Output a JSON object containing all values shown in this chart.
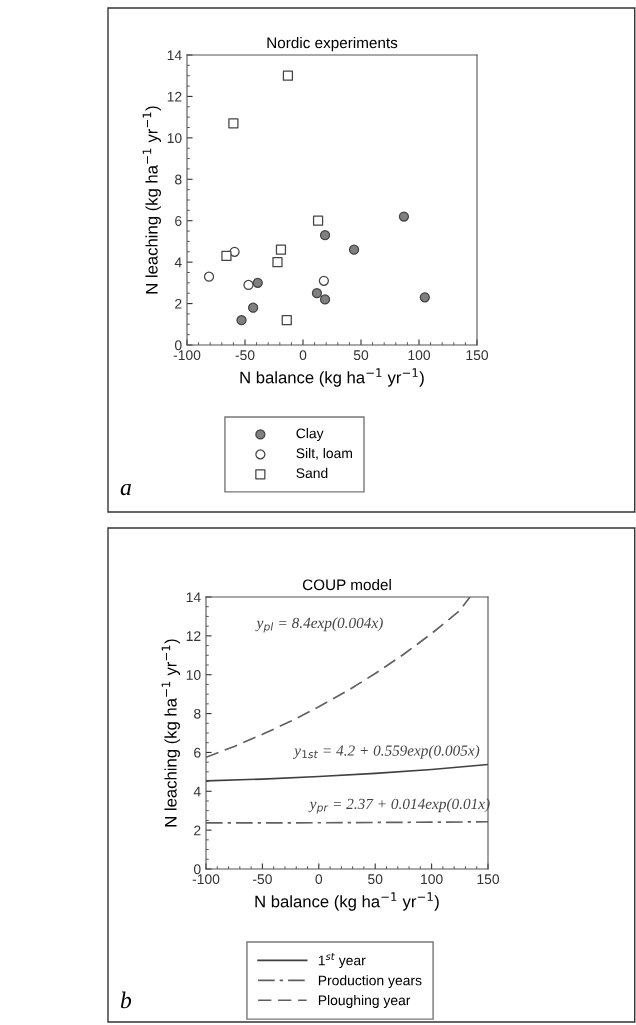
{
  "chart_data": [
    {
      "type": "scatter",
      "title": "Nordic experiments",
      "xlabel": "N balance (kg ha$^{−1}$ yr$^{−1}$)",
      "ylabel": "N leaching (kg ha$^{−1}$ yr$^{−1}$)",
      "xlim": [
        -100,
        150
      ],
      "xticks": [
        -100,
        -50,
        0,
        50,
        100,
        150
      ],
      "ylim": [
        0,
        14
      ],
      "yticks": [
        0,
        2,
        4,
        6,
        8,
        10,
        12,
        14
      ],
      "grid": false,
      "legend": "bottom",
      "series": [
        {
          "name": "Clay",
          "color": "#808080",
          "marker": "circle",
          "x": [
            -53,
            -43,
            -39,
            12,
            19,
            19,
            44,
            87,
            105
          ],
          "values": [
            1.2,
            1.8,
            3.0,
            2.5,
            2.2,
            5.3,
            4.6,
            6.2,
            2.3
          ]
        },
        {
          "name": "Silt, loam",
          "color": "#ffffff",
          "marker": "circle",
          "x": [
            -81,
            -59,
            -47,
            18
          ],
          "values": [
            3.3,
            4.5,
            2.9,
            3.1
          ]
        },
        {
          "name": "Sand",
          "color": "#ffffff",
          "marker": "square",
          "x": [
            -13,
            -60,
            -66,
            -22,
            -19,
            13,
            -14
          ],
          "values": [
            13.0,
            10.7,
            4.3,
            4.0,
            4.6,
            6.0,
            1.2
          ]
        }
      ],
      "annotations": [
        "a"
      ]
    },
    {
      "type": "line",
      "title": "COUP model",
      "xlabel": "N balance (kg ha$^{−1}$ yr$^{−1}$)",
      "ylabel": "N leaching (kg ha$^{−1}$ yr$^{−1}$)",
      "xlim": [
        -100,
        150
      ],
      "xticks": [
        -100,
        -50,
        0,
        50,
        100,
        150
      ],
      "ylim": [
        0,
        14
      ],
      "yticks": [
        0,
        2,
        4,
        6,
        8,
        10,
        12,
        14
      ],
      "grid": false,
      "legend": "bottom",
      "marker": "none",
      "series": [
        {
          "name": "1$^{st}$ year",
          "color": "#404040",
          "line_style": "solid",
          "x": [
            -100,
            -50,
            0,
            50,
            100,
            150
          ],
          "values": [
            4.54,
            4.63,
            4.76,
            4.92,
            5.12,
            5.38
          ]
        },
        {
          "name": "Production years",
          "color": "#606060",
          "line_style": "dashdot",
          "x": [
            -100,
            0,
            100,
            150
          ],
          "values": [
            2.37,
            2.38,
            2.41,
            2.43
          ]
        },
        {
          "name": "Ploughing year",
          "color": "#606060",
          "line_style": "dashed",
          "x": [
            -100,
            -75,
            -50,
            -25,
            0,
            25,
            50,
            75,
            100,
            125,
            134
          ],
          "values": [
            5.75,
            6.31,
            6.93,
            7.6,
            8.35,
            9.16,
            10.06,
            11.04,
            12.12,
            13.3,
            14.0
          ]
        }
      ],
      "annotations": [
        "y$_{pl}$ = 8.4exp(0.004x)",
        "y$_{1st}$ = 4.2 + 0.559exp(0.005x)",
        "y$_{pr}$ = 2.37 + 0.014exp(0.01x)",
        "b"
      ]
    }
  ]
}
